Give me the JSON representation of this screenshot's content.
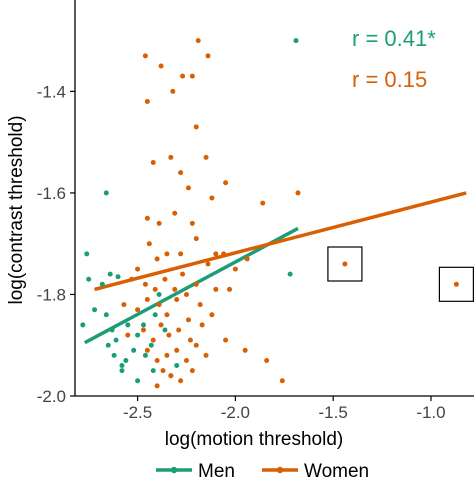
{
  "chart_data": {
    "type": "scatter",
    "xlabel": "log(motion threshold)",
    "ylabel": "log(contrast threshold)",
    "xlim": [
      -2.82,
      -0.78
    ],
    "ylim": [
      -2.0,
      -1.22
    ],
    "x_ticks": [
      -2.5,
      -2.0,
      -1.5,
      -1.0
    ],
    "x_tick_labels": [
      "-2.5",
      "-2.0",
      "-1.5",
      "-1.0"
    ],
    "y_ticks": [
      -2.0,
      -1.8,
      -1.6,
      -1.4
    ],
    "y_tick_labels": [
      "-2.0",
      "-1.8",
      "-1.6",
      "-1.4"
    ],
    "grid": false,
    "legend_position": "bottom",
    "series": [
      {
        "name": "Men",
        "color": "#1b9e77",
        "r_label": "r = 0.41*",
        "fit": {
          "x": [
            -2.77,
            -1.68
          ],
          "y": [
            -1.895,
            -1.67
          ]
        },
        "points": [
          [
            -2.66,
            -1.6
          ],
          [
            -2.76,
            -1.72
          ],
          [
            -2.75,
            -1.77
          ],
          [
            -2.68,
            -1.78
          ],
          [
            -2.64,
            -1.76
          ],
          [
            -2.6,
            -1.765
          ],
          [
            -2.78,
            -1.86
          ],
          [
            -2.72,
            -1.83
          ],
          [
            -2.66,
            -1.84
          ],
          [
            -2.63,
            -1.87
          ],
          [
            -2.61,
            -1.89
          ],
          [
            -2.65,
            -1.9
          ],
          [
            -2.62,
            -1.92
          ],
          [
            -2.58,
            -1.94
          ],
          [
            -2.56,
            -1.93
          ],
          [
            -2.52,
            -1.91
          ],
          [
            -2.5,
            -1.88
          ],
          [
            -2.47,
            -1.86
          ],
          [
            -2.46,
            -1.92
          ],
          [
            -2.43,
            -1.9
          ],
          [
            -2.42,
            -1.95
          ],
          [
            -2.41,
            -1.84
          ],
          [
            -2.39,
            -1.8
          ],
          [
            -2.36,
            -1.87
          ],
          [
            -2.33,
            -1.96
          ],
          [
            -2.3,
            -1.94
          ],
          [
            -2.58,
            -1.95
          ],
          [
            -2.5,
            -1.97
          ],
          [
            -2.55,
            -1.86
          ],
          [
            -1.72,
            -1.76
          ],
          [
            -1.69,
            -1.3
          ]
        ]
      },
      {
        "name": "Women",
        "color": "#d95f02",
        "r_label": "r = 0.15",
        "fit": {
          "x": [
            -2.72,
            -0.82
          ],
          "y": [
            -1.79,
            -1.6
          ]
        },
        "points": [
          [
            -2.46,
            -1.33
          ],
          [
            -2.38,
            -1.35
          ],
          [
            -2.32,
            -1.4
          ],
          [
            -2.19,
            -1.3
          ],
          [
            -2.14,
            -1.33
          ],
          [
            -2.27,
            -1.37
          ],
          [
            -2.22,
            -1.37
          ],
          [
            -2.45,
            -1.42
          ],
          [
            -2.2,
            -1.47
          ],
          [
            -2.15,
            -1.53
          ],
          [
            -2.42,
            -1.54
          ],
          [
            -2.33,
            -1.53
          ],
          [
            -2.28,
            -1.56
          ],
          [
            -2.24,
            -1.59
          ],
          [
            -2.12,
            -1.61
          ],
          [
            -2.05,
            -1.58
          ],
          [
            -1.86,
            -1.62
          ],
          [
            -1.68,
            -1.6
          ],
          [
            -2.45,
            -1.65
          ],
          [
            -2.39,
            -1.66
          ],
          [
            -2.31,
            -1.64
          ],
          [
            -2.22,
            -1.66
          ],
          [
            -2.2,
            -1.69
          ],
          [
            -2.35,
            -1.72
          ],
          [
            -2.28,
            -1.72
          ],
          [
            -2.44,
            -1.7
          ],
          [
            -2.4,
            -1.73
          ],
          [
            -2.14,
            -1.74
          ],
          [
            -2.1,
            -1.72
          ],
          [
            -2.06,
            -1.72
          ],
          [
            -2.0,
            -1.75
          ],
          [
            -1.94,
            -1.73
          ],
          [
            -2.5,
            -1.75
          ],
          [
            -2.53,
            -1.77
          ],
          [
            -2.46,
            -1.78
          ],
          [
            -2.41,
            -1.79
          ],
          [
            -2.36,
            -1.77
          ],
          [
            -2.31,
            -1.79
          ],
          [
            -2.27,
            -1.76
          ],
          [
            -2.25,
            -1.8
          ],
          [
            -2.2,
            -1.78
          ],
          [
            -2.1,
            -1.79
          ],
          [
            -2.03,
            -1.79
          ],
          [
            -2.57,
            -1.82
          ],
          [
            -2.5,
            -1.83
          ],
          [
            -2.45,
            -1.81
          ],
          [
            -2.39,
            -1.82
          ],
          [
            -2.35,
            -1.84
          ],
          [
            -2.3,
            -1.81
          ],
          [
            -2.24,
            -1.85
          ],
          [
            -2.18,
            -1.82
          ],
          [
            -2.12,
            -1.84
          ],
          [
            -2.55,
            -1.88
          ],
          [
            -2.47,
            -1.87
          ],
          [
            -2.42,
            -1.89
          ],
          [
            -2.38,
            -1.86
          ],
          [
            -2.34,
            -1.88
          ],
          [
            -2.29,
            -1.87
          ],
          [
            -2.23,
            -1.89
          ],
          [
            -2.17,
            -1.86
          ],
          [
            -2.45,
            -1.91
          ],
          [
            -2.4,
            -1.93
          ],
          [
            -2.35,
            -1.92
          ],
          [
            -2.3,
            -1.91
          ],
          [
            -2.25,
            -1.93
          ],
          [
            -2.2,
            -1.9
          ],
          [
            -2.15,
            -1.92
          ],
          [
            -2.05,
            -1.89
          ],
          [
            -1.95,
            -1.91
          ],
          [
            -2.37,
            -1.95
          ],
          [
            -2.33,
            -1.96
          ],
          [
            -2.28,
            -1.97
          ],
          [
            -2.22,
            -1.95
          ],
          [
            -2.4,
            -1.98
          ],
          [
            -1.84,
            -1.93
          ],
          [
            -1.76,
            -1.97
          ],
          [
            -1.44,
            -1.74
          ],
          [
            -0.87,
            -1.78
          ]
        ]
      }
    ],
    "highlighted_points": [
      [
        -1.44,
        -1.74
      ],
      [
        -0.87,
        -1.78
      ]
    ]
  }
}
